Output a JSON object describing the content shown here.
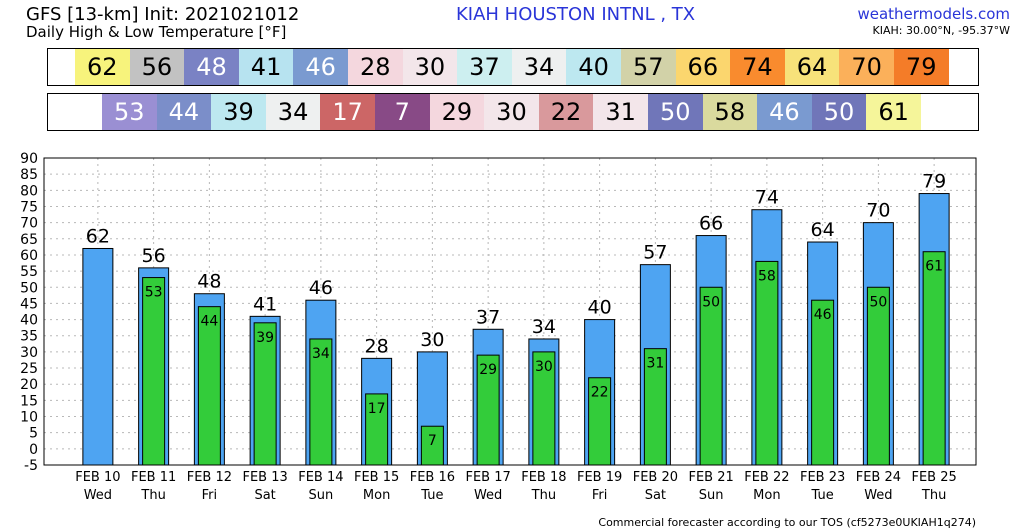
{
  "header": {
    "model": "GFS [13-km] Init: 2021021012",
    "subtitle": "Daily High & Low Temperature [°F]",
    "station": "KIAH HOUSTON INTNL  , TX",
    "site": "weathermodels.com",
    "coords": "KIAH: 30.00°N, -95.37°W"
  },
  "footer": "Commercial forecaster according to our TOS (cf5273e0UKIAH1q274)",
  "colors": {
    "high_bar": "#4ea4f2",
    "low_bar": "#33cc3a",
    "grid": "#b8b8b8",
    "scale": {
      "7": "#884a86",
      "17": "#cc6666",
      "22": "#d9999c",
      "28": "#f4d7de",
      "29": "#f4d7de",
      "30": "#f3e6ea",
      "31": "#f3e6ea",
      "34": "#eef0f0",
      "37": "#cdeff0",
      "39": "#bde8f0",
      "40": "#bde8f0",
      "41": "#b7e3f0",
      "44": "#7b8ec9",
      "46": "#7a9ad0",
      "48": "#7a82c4",
      "50": "#7076b9",
      "53": "#9a8fd3",
      "56": "#c2c2c2",
      "57": "#d2d2a8",
      "58": "#dada9e",
      "61": "#f5f59a",
      "62": "#f7f37c",
      "64": "#f7e27a",
      "66": "#fbd66e",
      "70": "#fbb05a",
      "74": "#f98b2e",
      "79": "#f47c28"
    }
  },
  "chart_data": {
    "type": "bar",
    "categories": [
      "FEB 10",
      "FEB 11",
      "FEB 12",
      "FEB 13",
      "FEB 14",
      "FEB 15",
      "FEB 16",
      "FEB 17",
      "FEB 18",
      "FEB 19",
      "FEB 20",
      "FEB 21",
      "FEB 22",
      "FEB 23",
      "FEB 24",
      "FEB 25"
    ],
    "weekdays": [
      "Wed",
      "Thu",
      "Fri",
      "Sat",
      "Sun",
      "Mon",
      "Tue",
      "Wed",
      "Thu",
      "Fri",
      "Sat",
      "Sun",
      "Mon",
      "Tue",
      "Wed",
      "Thu"
    ],
    "series": [
      {
        "values": [
          62,
          56,
          48,
          41,
          46,
          28,
          30,
          37,
          34,
          40,
          57,
          66,
          74,
          64,
          70,
          79
        ]
      },
      {
        "values": [
          null,
          53,
          44,
          39,
          34,
          17,
          7,
          29,
          30,
          22,
          31,
          50,
          58,
          46,
          50,
          61
        ]
      }
    ],
    "yticks": [
      -5,
      0,
      5,
      10,
      15,
      20,
      25,
      30,
      35,
      40,
      45,
      50,
      55,
      60,
      65,
      70,
      75,
      80,
      85,
      90
    ],
    "ylim": [
      -5,
      90
    ],
    "grid": true
  }
}
